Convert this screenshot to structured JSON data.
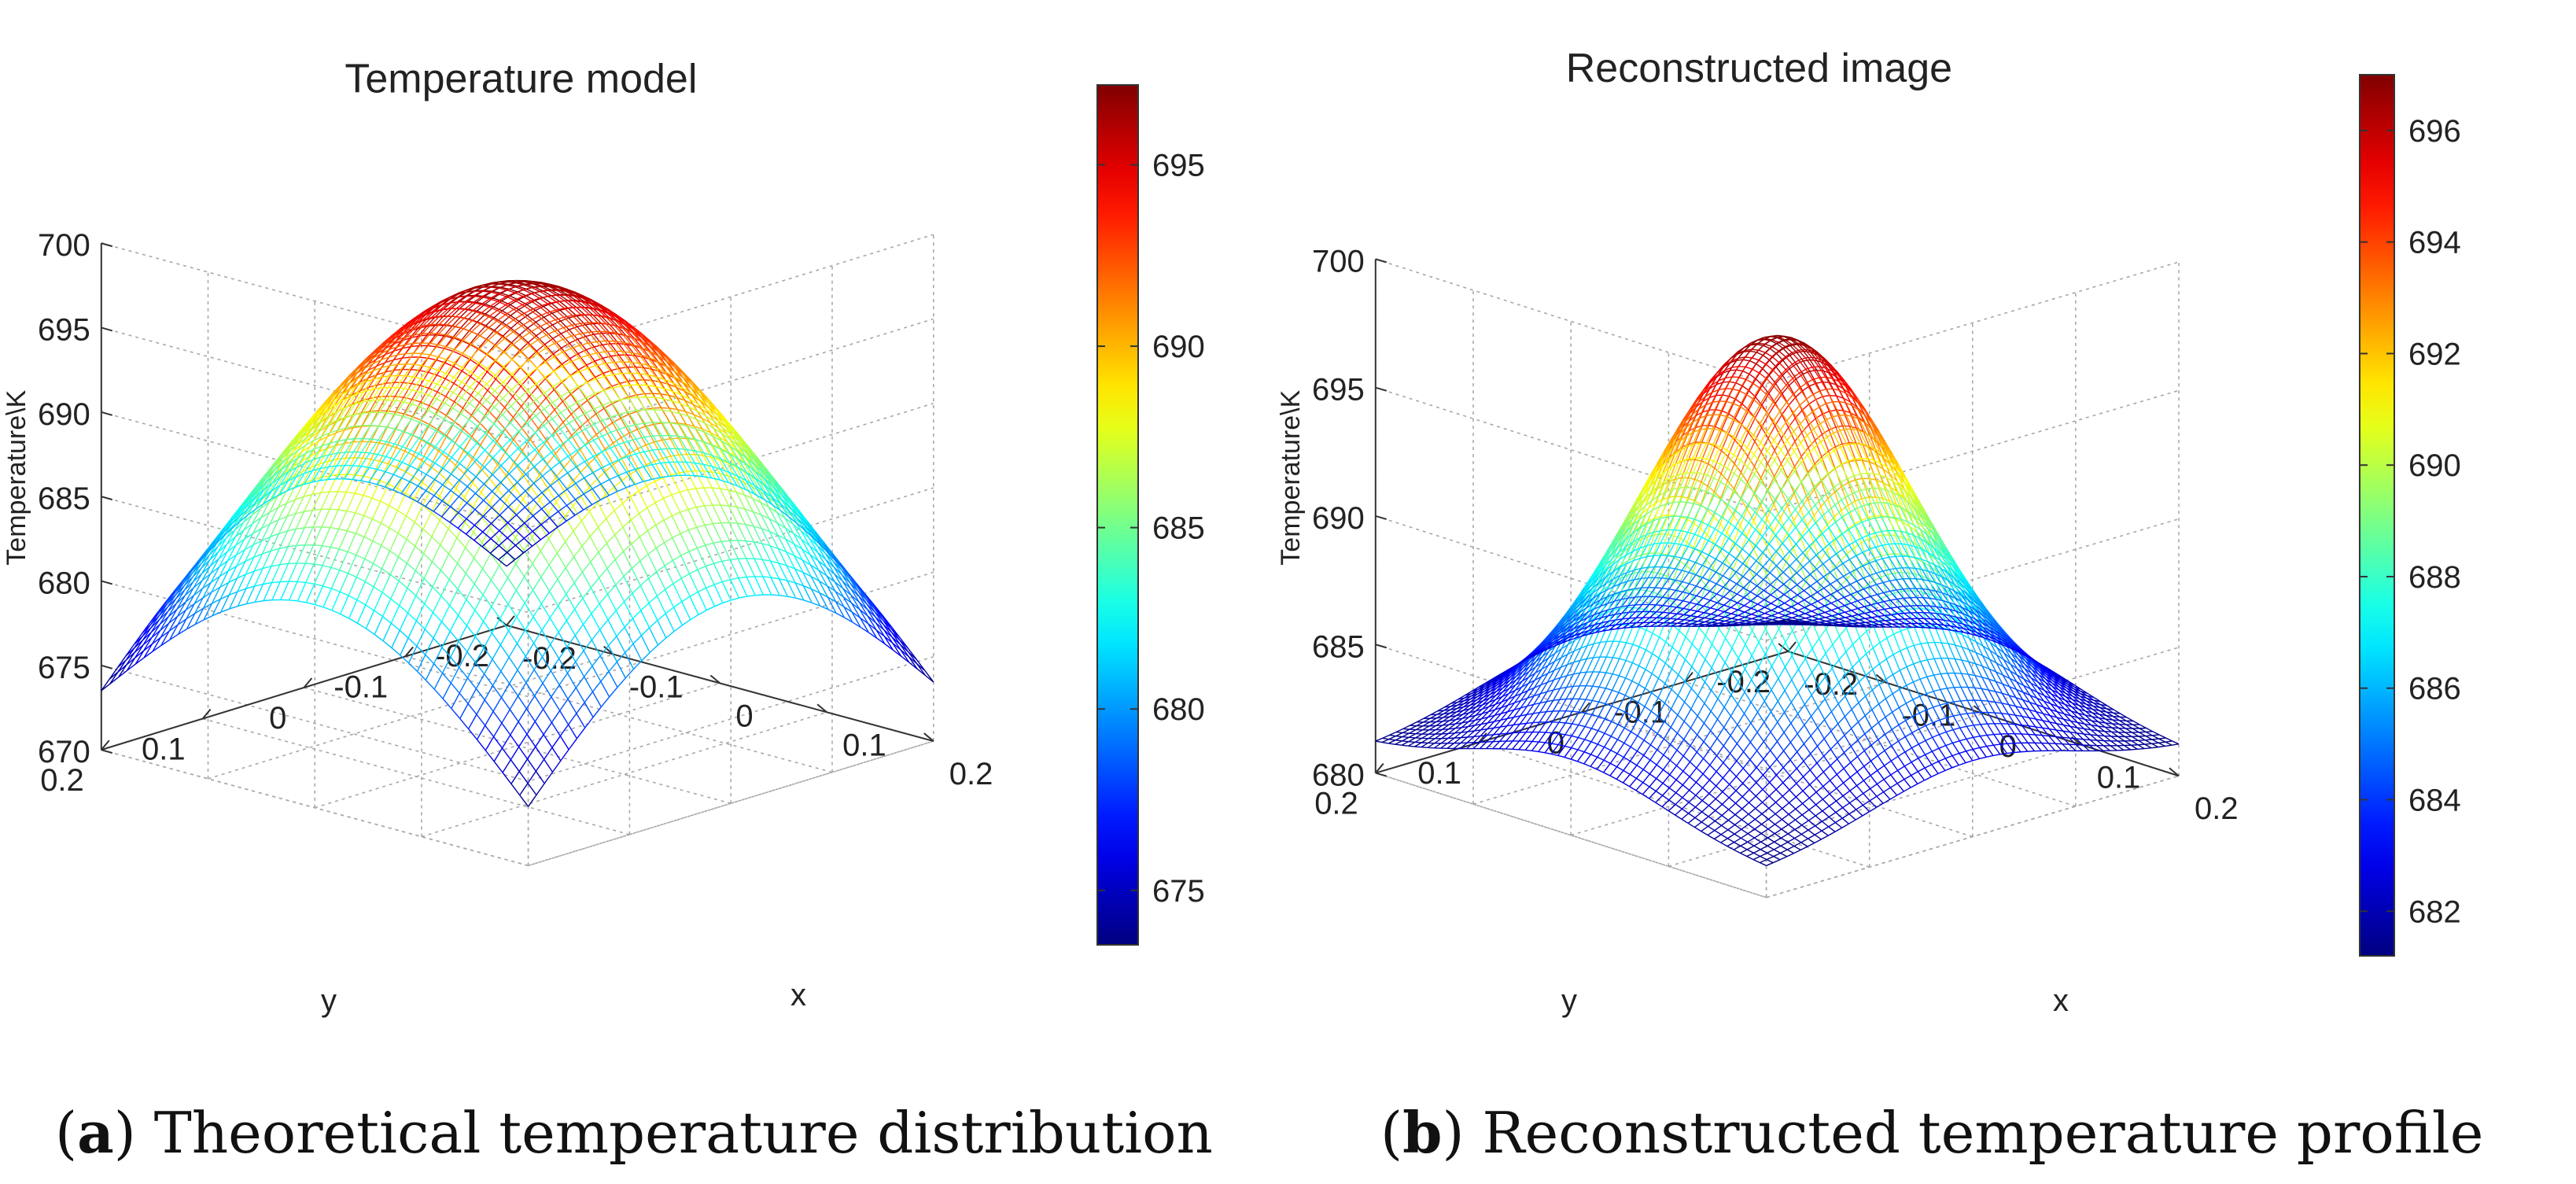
{
  "chart_data": [
    {
      "type": "surface",
      "title": "Temperature model",
      "zlabel": "Temperature\\K",
      "xlabel": "x",
      "ylabel": "y",
      "x_ticks": [
        "-0.2",
        "-0.1",
        "0",
        "0.1",
        "0.2"
      ],
      "y_ticks": [
        "-0.2",
        "-0.1",
        "0",
        "0.1",
        "0.2"
      ],
      "z_ticks": [
        "670",
        "675",
        "680",
        "685",
        "690",
        "695",
        "700"
      ],
      "zlim": [
        670,
        700
      ],
      "xlim": [
        -0.2,
        0.2
      ],
      "ylim": [
        -0.2,
        0.2
      ],
      "zmax": 697.2,
      "zcorner": 673.5,
      "model": "cosine",
      "grid_lines": 50,
      "colormap": "jet",
      "colorbar_range": [
        673.5,
        697.2
      ],
      "colorbar_ticks": [
        "675",
        "680",
        "685",
        "690",
        "695"
      ],
      "caption_letter": "a",
      "caption_text": ") Theoretical temperature distribution"
    },
    {
      "type": "surface",
      "title": "Reconstructed image",
      "zlabel": "Temperature\\K",
      "xlabel": "x",
      "ylabel": "y",
      "x_ticks": [
        "-0.2",
        "-0.1",
        "0",
        "0.1",
        "0.2"
      ],
      "y_ticks": [
        "-0.2",
        "-0.1",
        "0",
        "0.1",
        "0.2"
      ],
      "z_ticks": [
        "680",
        "685",
        "690",
        "695",
        "700"
      ],
      "zlim": [
        680,
        700
      ],
      "xlim": [
        -0.2,
        0.2
      ],
      "ylim": [
        -0.2,
        0.2
      ],
      "zmax": 697.0,
      "zcorner": 681.0,
      "model": "gaussian",
      "grid_lines": 60,
      "colormap": "jet",
      "colorbar_range": [
        681.2,
        697.0
      ],
      "colorbar_ticks": [
        "682",
        "684",
        "686",
        "688",
        "690",
        "692",
        "694",
        "696"
      ],
      "caption_letter": "b",
      "caption_text": ") Reconstructed temperature profile"
    }
  ]
}
